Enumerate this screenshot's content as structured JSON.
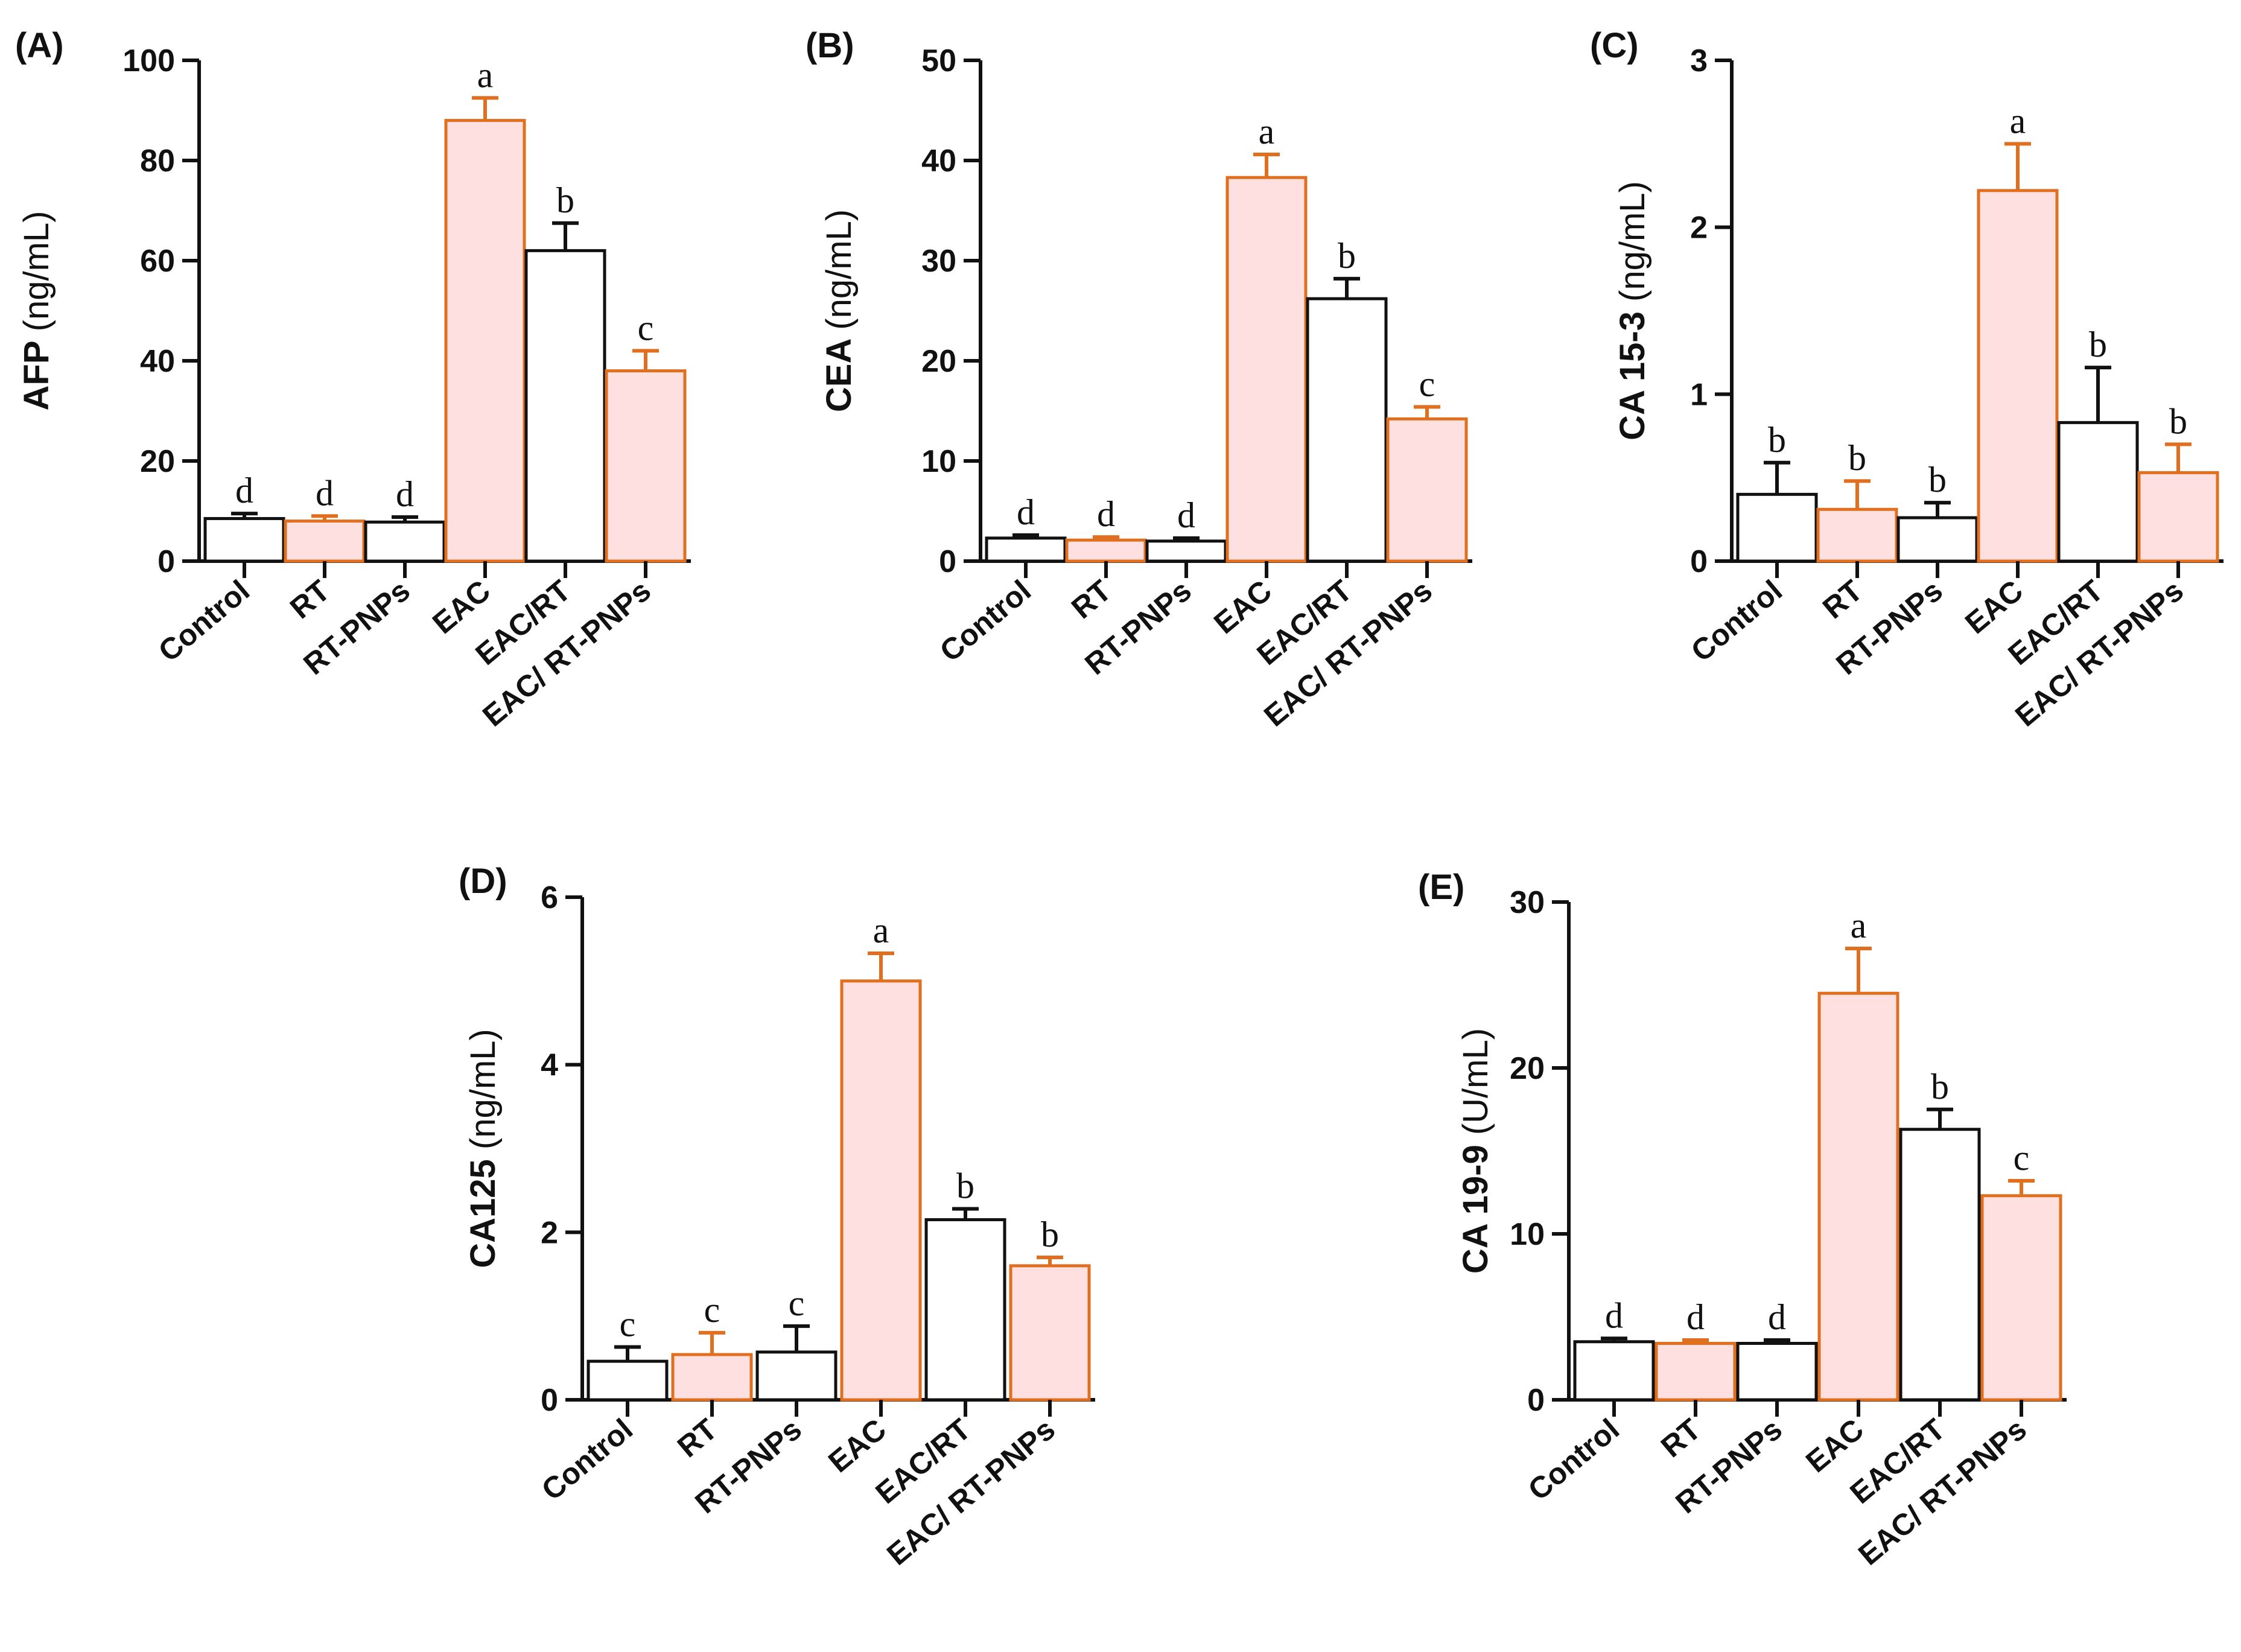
{
  "colors": {
    "outline_dark": "#111111",
    "outline_orange": "#e07020",
    "fill_pink": "#fde0df",
    "fill_white": "#ffffff"
  },
  "chart_data": [
    {
      "type": "bar",
      "panel_label": "(A)",
      "ylabel_main": "AFP",
      "ylabel_unit": "(ng/mL)",
      "ylim": [
        0,
        100
      ],
      "yticks": [
        0,
        20,
        40,
        60,
        80,
        100
      ],
      "categories": [
        "Control",
        "RT",
        "RT-PNPs",
        "EAC",
        "EAC/RT",
        "EAC/ RT-PNPs"
      ],
      "values": [
        8.5,
        8.0,
        7.8,
        88.0,
        62.0,
        38.0
      ],
      "errors": [
        1.0,
        1.0,
        1.0,
        4.5,
        5.5,
        4.0
      ],
      "letters": [
        "d",
        "d",
        "d",
        "a",
        "b",
        "c"
      ],
      "styles": [
        "white",
        "pink",
        "white",
        "pink",
        "white",
        "pink"
      ]
    },
    {
      "type": "bar",
      "panel_label": "(B)",
      "ylabel_main": "CEA",
      "ylabel_unit": "(ng/mL)",
      "ylim": [
        0,
        50
      ],
      "yticks": [
        0,
        10,
        20,
        30,
        40,
        50
      ],
      "categories": [
        "Control",
        "RT",
        "RT-PNPs",
        "EAC",
        "EAC/RT",
        "EAC/ RT-PNPs"
      ],
      "values": [
        2.3,
        2.1,
        2.0,
        38.3,
        26.2,
        14.2
      ],
      "errors": [
        0.3,
        0.3,
        0.3,
        2.3,
        2.0,
        1.2
      ],
      "letters": [
        "d",
        "d",
        "d",
        "a",
        "b",
        "c"
      ],
      "styles": [
        "white",
        "pink",
        "white",
        "pink",
        "white",
        "pink"
      ]
    },
    {
      "type": "bar",
      "panel_label": "(C)",
      "ylabel_main": "CA 15-3",
      "ylabel_unit": "(ng/mL)",
      "ylim": [
        0,
        3
      ],
      "yticks": [
        0,
        1,
        2,
        3
      ],
      "categories": [
        "Control",
        "RT",
        "RT-PNPs",
        "EAC",
        "EAC/RT",
        "EAC/ RT-PNPs"
      ],
      "values": [
        0.4,
        0.31,
        0.26,
        2.22,
        0.83,
        0.53
      ],
      "errors": [
        0.19,
        0.17,
        0.09,
        0.28,
        0.33,
        0.17
      ],
      "letters": [
        "b",
        "b",
        "b",
        "a",
        "b",
        "b"
      ],
      "styles": [
        "white",
        "pink",
        "white",
        "pink",
        "white",
        "pink"
      ]
    },
    {
      "type": "bar",
      "panel_label": "(D)",
      "ylabel_main": "CA125",
      "ylabel_unit": "(ng/mL)",
      "ylim": [
        0,
        6
      ],
      "yticks": [
        0,
        2,
        4,
        6
      ],
      "categories": [
        "Control",
        "RT",
        "RT-PNPs",
        "EAC",
        "EAC/RT",
        "EAC/ RT-PNPs"
      ],
      "values": [
        0.46,
        0.54,
        0.57,
        5.0,
        2.15,
        1.6
      ],
      "errors": [
        0.17,
        0.26,
        0.31,
        0.33,
        0.13,
        0.1
      ],
      "letters": [
        "c",
        "c",
        "c",
        "a",
        "b",
        "b"
      ],
      "styles": [
        "white",
        "pink",
        "white",
        "pink",
        "white",
        "pink"
      ]
    },
    {
      "type": "bar",
      "panel_label": "(E)",
      "ylabel_main": "CA 19-9",
      "ylabel_unit": "(U/mL)",
      "ylim": [
        0,
        30
      ],
      "yticks": [
        0,
        10,
        20,
        30
      ],
      "categories": [
        "Control",
        "RT",
        "RT-PNPs",
        "EAC",
        "EAC/RT",
        "EAC/ RT-PNPs"
      ],
      "values": [
        3.5,
        3.4,
        3.4,
        24.5,
        16.3,
        12.3
      ],
      "errors": [
        0.2,
        0.2,
        0.2,
        2.7,
        1.2,
        0.9
      ],
      "letters": [
        "d",
        "d",
        "d",
        "a",
        "b",
        "c"
      ],
      "styles": [
        "white",
        "pink",
        "white",
        "pink",
        "white",
        "pink"
      ]
    }
  ]
}
